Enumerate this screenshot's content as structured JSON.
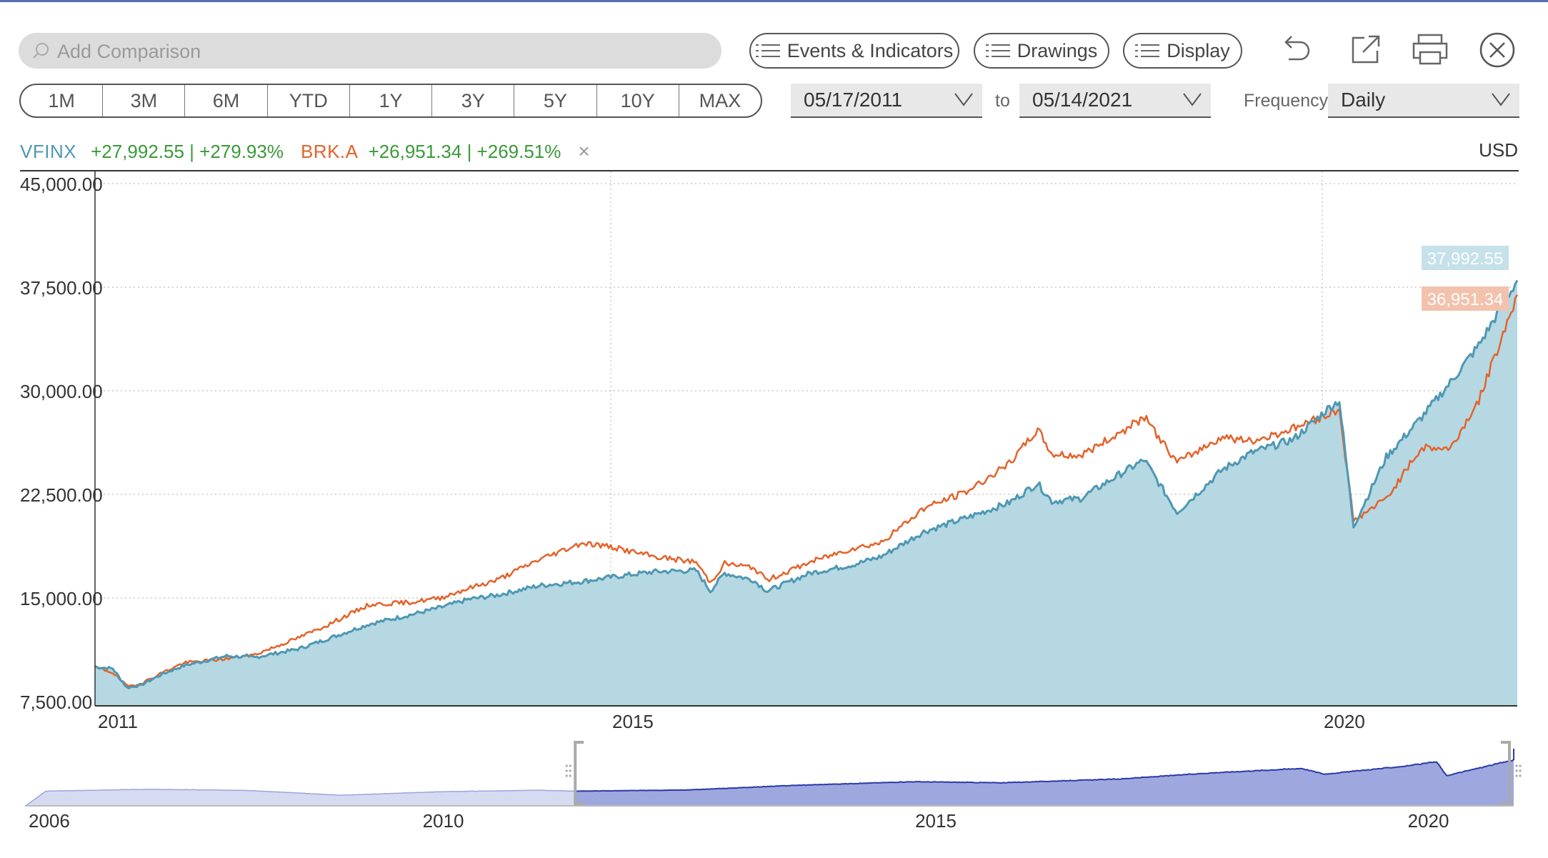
{
  "toolbar": {
    "search_placeholder": "Add Comparison",
    "events_label": "Events & Indicators",
    "drawings_label": "Drawings",
    "display_label": "Display"
  },
  "ranges": [
    "1M",
    "3M",
    "6M",
    "YTD",
    "1Y",
    "3Y",
    "5Y",
    "10Y",
    "MAX"
  ],
  "dates": {
    "start": "05/17/2011",
    "to_label": "to",
    "end": "05/14/2021",
    "frequency_label": "Frequency",
    "frequency": "Daily"
  },
  "legend": {
    "vfinx_ticker": "VFINX",
    "vfinx_change": "+27,992.55 | +279.93%",
    "brk_ticker": "BRK.A",
    "brk_change": "+26,951.34 | +269.51%",
    "remove_glyph": "×",
    "currency": "USD"
  },
  "colors": {
    "vfinx": "#4e98b3",
    "vfinx_fill": "#b5d8e2",
    "brk": "#e4622a",
    "gain": "#3a9a3a",
    "navigator_fill": "#9ea8de",
    "navigator_line": "#2c3aa8"
  },
  "chart_data": {
    "type": "line",
    "title": "",
    "xlabel": "",
    "ylabel": "",
    "currency": "USD",
    "x_range": [
      2011.375,
      2021.37
    ],
    "ylim": [
      7500,
      45000
    ],
    "yticks": [
      7500,
      15000,
      22500,
      30000,
      37500,
      45000
    ],
    "ytick_labels": [
      "7,500.00",
      "15,000.00",
      "22,500.00",
      "30,000.00",
      "37,500.00",
      "45,000.00"
    ],
    "xtick_labels": [
      {
        "x": 2011,
        "label": "2011"
      },
      {
        "x": 2015,
        "label": "2015"
      },
      {
        "x": 2020,
        "label": "2020"
      }
    ],
    "grid": true,
    "last_value_labels": [
      {
        "series": "VFINX",
        "value": "37,992.55"
      },
      {
        "series": "BRK.A",
        "value": "36,951.34"
      }
    ],
    "series": [
      {
        "name": "VFINX",
        "style": "area",
        "x": [
          2011.375,
          2011.5,
          2011.6,
          2011.7,
          2011.85,
          2012.0,
          2012.3,
          2012.5,
          2012.8,
          2013.0,
          2013.3,
          2013.6,
          2013.8,
          2014.0,
          2014.2,
          2014.5,
          2014.8,
          2015.0,
          2015.3,
          2015.6,
          2015.7,
          2015.8,
          2016.0,
          2016.1,
          2016.4,
          2016.7,
          2016.9,
          2017.2,
          2017.5,
          2017.8,
          2018.0,
          2018.1,
          2018.3,
          2018.6,
          2018.75,
          2018.98,
          2019.3,
          2019.5,
          2019.8,
          2020.05,
          2020.12,
          2020.22,
          2020.45,
          2020.7,
          2020.9,
          2021.1,
          2021.37
        ],
        "y": [
          10000,
          9900,
          8500,
          8700,
          9500,
          10100,
          10800,
          10700,
          11300,
          12000,
          13100,
          13800,
          14300,
          14900,
          15200,
          15900,
          16200,
          16500,
          16900,
          17000,
          15500,
          16800,
          16300,
          15500,
          16800,
          17400,
          18000,
          19800,
          20800,
          21900,
          23300,
          22000,
          22200,
          24100,
          25000,
          21200,
          24300,
          25500,
          26500,
          28800,
          29300,
          20200,
          25200,
          28100,
          30600,
          33300,
          37992
        ]
      },
      {
        "name": "BRK.A",
        "style": "line",
        "x": [
          2011.375,
          2011.5,
          2011.6,
          2011.7,
          2011.85,
          2012.0,
          2012.3,
          2012.5,
          2012.8,
          2013.0,
          2013.3,
          2013.6,
          2013.8,
          2014.0,
          2014.2,
          2014.5,
          2014.8,
          2015.0,
          2015.3,
          2015.6,
          2015.7,
          2015.8,
          2016.0,
          2016.1,
          2016.4,
          2016.7,
          2016.9,
          2017.2,
          2017.5,
          2017.8,
          2018.0,
          2018.1,
          2018.3,
          2018.6,
          2018.75,
          2018.98,
          2019.3,
          2019.5,
          2019.8,
          2020.05,
          2020.12,
          2020.22,
          2020.45,
          2020.7,
          2020.9,
          2021.1,
          2021.37
        ],
        "y": [
          10000,
          9600,
          8600,
          8800,
          9600,
          10300,
          10600,
          10900,
          12100,
          13000,
          14500,
          14700,
          15000,
          15700,
          16300,
          17800,
          19000,
          18700,
          18000,
          17600,
          16100,
          17500,
          17200,
          16300,
          17600,
          18600,
          19000,
          21500,
          22700,
          24700,
          27200,
          25400,
          25300,
          27100,
          28100,
          24800,
          26700,
          26300,
          27300,
          28300,
          28700,
          20600,
          22200,
          25900,
          25800,
          29300,
          36951
        ]
      }
    ],
    "navigator": {
      "x_range": [
        2006,
        2021.37
      ],
      "xtick_labels": [
        {
          "x": 2006,
          "label": "2006"
        },
        {
          "x": 2010,
          "label": "2010"
        },
        {
          "x": 2015,
          "label": "2015"
        },
        {
          "x": 2020,
          "label": "2020"
        }
      ],
      "selected_range": [
        2011.375,
        2021.37
      ]
    }
  }
}
